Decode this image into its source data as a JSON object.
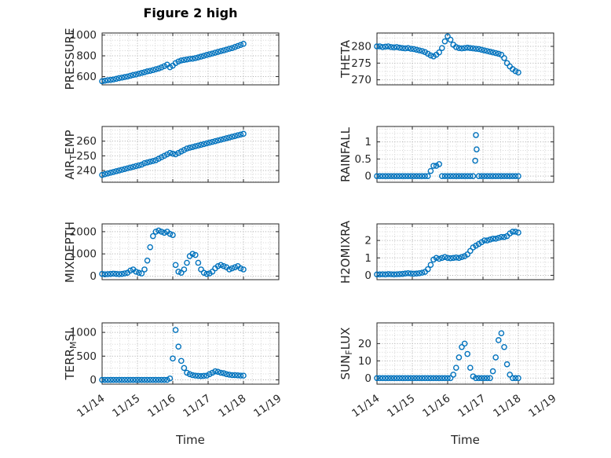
{
  "title": "Figure 2 high",
  "chart_data": {
    "type": "scatter",
    "title": "Figure 2 high",
    "xlabel": "Time",
    "marker_color": "#0072BD",
    "axis_color": "#262626",
    "legend": "none",
    "grid": "on (dotted major + minor)",
    "x_axis": {
      "lim": [
        0,
        5
      ],
      "ticks": [
        0,
        1,
        2,
        3,
        4,
        5
      ],
      "tick_labels": [
        "11/14",
        "11/15",
        "11/16",
        "11/17",
        "11/18",
        "11/19"
      ],
      "minor_step": 0.25,
      "unit": "days since 11/14"
    },
    "x_days": [
      0,
      0.08,
      0.16,
      0.24,
      0.32,
      0.4,
      0.48,
      0.56,
      0.64,
      0.72,
      0.8,
      0.88,
      0.96,
      1.04,
      1.12,
      1.2,
      1.28,
      1.36,
      1.44,
      1.52,
      1.6,
      1.68,
      1.76,
      1.84,
      1.92,
      2,
      2.08,
      2.16,
      2.24,
      2.32,
      2.4,
      2.48,
      2.56,
      2.64,
      2.72,
      2.8,
      2.88,
      2.96,
      3.04,
      3.12,
      3.2,
      3.28,
      3.36,
      3.44,
      3.52,
      3.6,
      3.68,
      3.76,
      3.84,
      3.92,
      4
    ],
    "charts": [
      {
        "name": "pressure",
        "ylabel": {
          "pre": "PRESSURE",
          "sub": "",
          "post": ""
        },
        "ylim": [
          520,
          1020
        ],
        "yticks": [
          600,
          800,
          1000
        ],
        "ytick_labels": [
          "600",
          "800",
          "1000"
        ],
        "y_minor": 50,
        "y": [
          555,
          560,
          565,
          568,
          572,
          578,
          585,
          590,
          595,
          600,
          608,
          615,
          620,
          628,
          635,
          642,
          650,
          655,
          662,
          670,
          678,
          688,
          700,
          715,
          690,
          705,
          730,
          745,
          755,
          760,
          765,
          770,
          772,
          778,
          785,
          792,
          800,
          808,
          815,
          822,
          830,
          838,
          845,
          852,
          860,
          868,
          875,
          885,
          895,
          905,
          915
        ]
      },
      {
        "name": "theta",
        "ylabel": {
          "pre": "THETA",
          "sub": "",
          "post": ""
        },
        "ylim": [
          268.5,
          284
        ],
        "yticks": [
          270,
          275,
          280
        ],
        "ytick_labels": [
          "270",
          "275",
          "280"
        ],
        "y_minor": 1.25,
        "y": [
          280,
          280,
          279.8,
          279.9,
          280,
          279.8,
          279.7,
          279.8,
          279.6,
          279.5,
          279.4,
          279.5,
          279.3,
          279.2,
          279,
          278.8,
          278.6,
          278.3,
          277.8,
          277.3,
          277,
          277.5,
          278.2,
          279.5,
          281.5,
          283,
          282,
          280.5,
          279.8,
          279.5,
          279.4,
          279.5,
          279.6,
          279.5,
          279.4,
          279.3,
          279.2,
          279,
          278.8,
          278.6,
          278.4,
          278.2,
          278,
          277.8,
          277.5,
          276.5,
          275,
          274,
          273.2,
          272.6,
          272.2
        ]
      },
      {
        "name": "air-temp",
        "ylabel": {
          "pre": "AIR",
          "sub": "T",
          "post": "EMP"
        },
        "ylim": [
          232,
          270
        ],
        "yticks": [
          240,
          250,
          260
        ],
        "ytick_labels": [
          "240",
          "250",
          "260"
        ],
        "y_minor": 2.5,
        "y": [
          237,
          237.5,
          238,
          238.5,
          239,
          239.5,
          240,
          240.5,
          241,
          241.5,
          242,
          242.5,
          243,
          243.5,
          244,
          245,
          245.5,
          246,
          246.5,
          247,
          248,
          249,
          250,
          251,
          252,
          251.5,
          251,
          252,
          253,
          254,
          255,
          255.5,
          256,
          256.5,
          257,
          257.5,
          258,
          258.5,
          259,
          259.5,
          260,
          260.5,
          261,
          261.5,
          262,
          262.5,
          263,
          263.5,
          264,
          264.5,
          265
        ]
      },
      {
        "name": "rainfall",
        "ylabel": {
          "pre": "RAINFALL",
          "sub": "",
          "post": ""
        },
        "ylim": [
          -0.18,
          1.45
        ],
        "yticks": [
          0,
          0.5,
          1
        ],
        "ytick_labels": [
          "0",
          "0.5",
          "1"
        ],
        "y_minor": 0.125,
        "y": [
          0,
          0,
          0,
          0,
          0,
          0,
          0,
          0,
          0,
          0,
          0,
          0,
          0,
          0,
          0,
          0,
          0,
          0,
          0,
          0.15,
          0.3,
          0.3,
          0.35,
          0,
          0,
          0,
          0,
          0,
          0,
          0,
          0,
          0,
          0,
          0,
          0,
          1.2,
          0,
          0,
          0,
          0,
          0,
          0,
          0,
          0,
          0,
          0,
          0,
          0,
          0,
          0,
          0
        ],
        "x_extra": [
          2.78,
          2.82
        ],
        "y_extra": [
          0.45,
          0.78
        ]
      },
      {
        "name": "mixdepth",
        "ylabel": {
          "pre": "MIXDEPTH",
          "sub": "",
          "post": ""
        },
        "ylim": [
          -160,
          2350
        ],
        "yticks": [
          0,
          1000,
          2000
        ],
        "ytick_labels": [
          "0",
          "1000",
          "2000"
        ],
        "y_minor": 250,
        "y": [
          100,
          80,
          90,
          100,
          110,
          100,
          90,
          100,
          120,
          150,
          250,
          300,
          200,
          150,
          120,
          300,
          700,
          1300,
          1800,
          2000,
          2050,
          2000,
          1950,
          2000,
          1900,
          1850,
          500,
          200,
          150,
          300,
          600,
          900,
          1000,
          950,
          600,
          300,
          150,
          100,
          120,
          200,
          350,
          450,
          500,
          450,
          400,
          300,
          350,
          400,
          450,
          350,
          300
        ]
      },
      {
        "name": "h2omixra",
        "ylabel": {
          "pre": "H2OMIXRA",
          "sub": "",
          "post": ""
        },
        "ylim": [
          -0.25,
          2.95
        ],
        "yticks": [
          0,
          1,
          2
        ],
        "ytick_labels": [
          "0",
          "1",
          "2"
        ],
        "y_minor": 0.25,
        "y": [
          0.05,
          0.05,
          0.06,
          0.05,
          0.07,
          0.06,
          0.05,
          0.06,
          0.07,
          0.08,
          0.1,
          0.12,
          0.1,
          0.09,
          0.1,
          0.12,
          0.15,
          0.2,
          0.35,
          0.6,
          0.9,
          1,
          0.95,
          1,
          1.05,
          1,
          0.98,
          1,
          1.02,
          1,
          1.05,
          1.1,
          1.2,
          1.4,
          1.6,
          1.7,
          1.8,
          1.9,
          2,
          2,
          2.05,
          2.1,
          2.1,
          2.15,
          2.2,
          2.2,
          2.25,
          2.4,
          2.5,
          2.5,
          2.45
        ]
      },
      {
        "name": "terr-msl",
        "ylabel": {
          "pre": "TERR",
          "sub": "M",
          "post": "SL"
        },
        "ylim": [
          -90,
          1200
        ],
        "yticks": [
          0,
          500,
          1000
        ],
        "ytick_labels": [
          "0",
          "500",
          "1000"
        ],
        "y_minor": 125,
        "y": [
          0,
          0,
          0,
          0,
          0,
          0,
          0,
          0,
          0,
          0,
          0,
          0,
          0,
          0,
          0,
          0,
          0,
          0,
          0,
          0,
          0,
          0,
          0,
          0,
          30,
          450,
          1050,
          700,
          400,
          250,
          150,
          120,
          100,
          90,
          85,
          80,
          85,
          90,
          120,
          150,
          180,
          170,
          150,
          140,
          120,
          110,
          100,
          100,
          95,
          90,
          90
        ]
      },
      {
        "name": "sun-flux",
        "ylabel": {
          "pre": "SUN",
          "sub": "F",
          "post": "LUX"
        },
        "ylim": [
          -3.5,
          32
        ],
        "yticks": [
          0,
          10,
          20
        ],
        "ytick_labels": [
          "0",
          "10",
          "20"
        ],
        "y_minor": 2.5,
        "y": [
          0,
          0,
          0,
          0,
          0,
          0,
          0,
          0,
          0,
          0,
          0,
          0,
          0,
          0,
          0,
          0,
          0,
          0,
          0,
          0,
          0,
          0,
          0,
          0,
          0,
          0,
          0,
          2,
          6,
          12,
          18,
          20,
          14,
          6,
          1,
          0,
          0,
          0,
          0,
          0,
          0,
          4,
          12,
          22,
          26,
          18,
          8,
          2,
          0,
          0,
          0
        ]
      }
    ]
  }
}
